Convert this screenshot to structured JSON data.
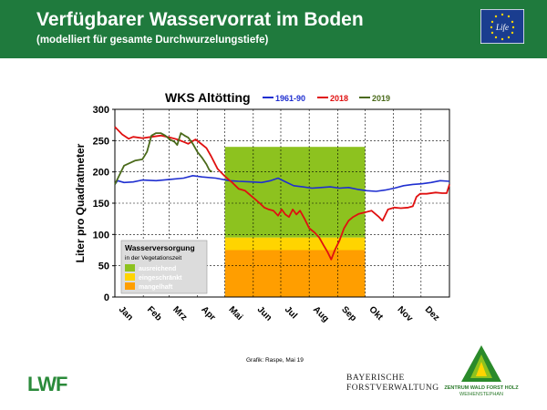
{
  "header": {
    "title": "Verfügbarer Wasservorrat im Boden",
    "subtitle": "(modelliert für gesamte Durchwurzelungstiefe)",
    "bg_color": "#1f7a3d",
    "logo_text": "Life"
  },
  "footer": {
    "credit": "Grafik: Raspe, Mai 19",
    "org_logo_text": "LWF",
    "bayern_line1": "BAYERISCHE",
    "bayern_line2": "FORSTVERWALTUNG",
    "zentrum_line1": "ZENTRUM WALD FORST HOLZ",
    "zentrum_line2": "WEIHENSTEPHAN"
  },
  "chart_data": {
    "type": "line",
    "title": "WKS Altötting",
    "ylabel": "Liter pro Quadratmeter",
    "xlabel": "",
    "ylim": [
      0,
      300
    ],
    "yticks": [
      0,
      50,
      100,
      150,
      200,
      250,
      300
    ],
    "xlim": [
      0,
      365
    ],
    "x_unit": "day of year",
    "month_labels": [
      "Jan",
      "Feb",
      "Mrz",
      "Apr",
      "Mai",
      "Jun",
      "Jul",
      "Aug",
      "Sep",
      "Okt",
      "Nov",
      "Dez"
    ],
    "month_starts": [
      0,
      31,
      59,
      90,
      120,
      151,
      181,
      212,
      243,
      273,
      304,
      334
    ],
    "grid": true,
    "legend_position": "top",
    "series": [
      {
        "name": "1961-90",
        "color": "#1f2fd0",
        "points": [
          [
            0,
            180
          ],
          [
            3,
            186
          ],
          [
            10,
            183
          ],
          [
            20,
            184
          ],
          [
            30,
            187
          ],
          [
            45,
            186
          ],
          [
            60,
            188
          ],
          [
            75,
            190
          ],
          [
            85,
            194
          ],
          [
            95,
            192
          ],
          [
            110,
            190
          ],
          [
            125,
            186
          ],
          [
            135,
            185
          ],
          [
            150,
            184
          ],
          [
            160,
            183
          ],
          [
            170,
            186
          ],
          [
            178,
            190
          ],
          [
            185,
            185
          ],
          [
            195,
            178
          ],
          [
            205,
            176
          ],
          [
            215,
            174
          ],
          [
            225,
            175
          ],
          [
            235,
            176
          ],
          [
            245,
            174
          ],
          [
            255,
            175
          ],
          [
            265,
            172
          ],
          [
            275,
            170
          ],
          [
            285,
            169
          ],
          [
            295,
            171
          ],
          [
            305,
            174
          ],
          [
            315,
            178
          ],
          [
            325,
            180
          ],
          [
            335,
            181
          ],
          [
            345,
            183
          ],
          [
            355,
            186
          ],
          [
            365,
            185
          ]
        ]
      },
      {
        "name": "2018",
        "color": "#e01010",
        "points": [
          [
            0,
            272
          ],
          [
            8,
            260
          ],
          [
            15,
            253
          ],
          [
            20,
            256
          ],
          [
            30,
            254
          ],
          [
            40,
            256
          ],
          [
            50,
            258
          ],
          [
            60,
            255
          ],
          [
            68,
            252
          ],
          [
            75,
            248
          ],
          [
            80,
            245
          ],
          [
            88,
            252
          ],
          [
            95,
            244
          ],
          [
            100,
            238
          ],
          [
            105,
            225
          ],
          [
            112,
            205
          ],
          [
            120,
            193
          ],
          [
            128,
            183
          ],
          [
            135,
            173
          ],
          [
            142,
            170
          ],
          [
            150,
            160
          ],
          [
            158,
            150
          ],
          [
            163,
            143
          ],
          [
            168,
            140
          ],
          [
            173,
            138
          ],
          [
            178,
            130
          ],
          [
            182,
            140
          ],
          [
            186,
            132
          ],
          [
            190,
            128
          ],
          [
            194,
            140
          ],
          [
            198,
            132
          ],
          [
            202,
            138
          ],
          [
            207,
            125
          ],
          [
            212,
            110
          ],
          [
            218,
            103
          ],
          [
            223,
            95
          ],
          [
            228,
            82
          ],
          [
            232,
            72
          ],
          [
            236,
            60
          ],
          [
            240,
            75
          ],
          [
            245,
            90
          ],
          [
            250,
            110
          ],
          [
            255,
            122
          ],
          [
            260,
            128
          ],
          [
            266,
            133
          ],
          [
            272,
            135
          ],
          [
            280,
            138
          ],
          [
            288,
            128
          ],
          [
            292,
            122
          ],
          [
            298,
            140
          ],
          [
            305,
            143
          ],
          [
            312,
            142
          ],
          [
            320,
            143
          ],
          [
            325,
            145
          ],
          [
            329,
            160
          ],
          [
            333,
            165
          ],
          [
            340,
            165
          ],
          [
            350,
            167
          ],
          [
            357,
            166
          ],
          [
            362,
            166
          ],
          [
            365,
            180
          ]
        ]
      },
      {
        "name": "2019",
        "color": "#4a6a1a",
        "points": [
          [
            0,
            180
          ],
          [
            5,
            195
          ],
          [
            10,
            210
          ],
          [
            16,
            214
          ],
          [
            22,
            218
          ],
          [
            30,
            220
          ],
          [
            35,
            232
          ],
          [
            40,
            258
          ],
          [
            45,
            262
          ],
          [
            50,
            262
          ],
          [
            55,
            258
          ],
          [
            60,
            252
          ],
          [
            65,
            248
          ],
          [
            68,
            243
          ],
          [
            72,
            262
          ],
          [
            76,
            258
          ],
          [
            80,
            255
          ],
          [
            85,
            245
          ],
          [
            90,
            232
          ],
          [
            95,
            223
          ],
          [
            100,
            212
          ],
          [
            103,
            203
          ],
          [
            106,
            200
          ]
        ]
      }
    ],
    "zones_title": "Wasserversorgung",
    "zones_subtitle": "in der Vegetationszeit",
    "zones": [
      {
        "label": "ausreichend",
        "from": 95,
        "to": 240,
        "color": "#8dc21f",
        "text_color": "#ffffff"
      },
      {
        "label": "eingeschränkt",
        "from": 75,
        "to": 95,
        "color": "#ffd400",
        "text_color": "#ffffff"
      },
      {
        "label": "mangelhaft",
        "from": 0,
        "to": 75,
        "color": "#ff9e00",
        "text_color": "#ffffff"
      }
    ],
    "zones_x_range": [
      120,
      273
    ]
  }
}
